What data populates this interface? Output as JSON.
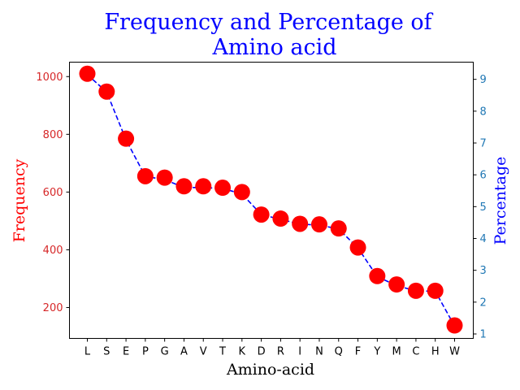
{
  "chart_data": {
    "type": "scatter",
    "title_lines": [
      "Frequency and Percentage of",
      "Amino acid"
    ],
    "xlabel": "Amino-acid",
    "ylabel_left": "Frequency",
    "ylabel_right": "Percentage",
    "categories": [
      "L",
      "S",
      "E",
      "P",
      "G",
      "A",
      "V",
      "T",
      "K",
      "D",
      "R",
      "I",
      "N",
      "Q",
      "F",
      "Y",
      "M",
      "C",
      "H",
      "W"
    ],
    "series": [
      {
        "axis": "left",
        "kind": "scatter",
        "color": "#ff0000",
        "values": [
          1010,
          948,
          785,
          655,
          650,
          620,
          620,
          615,
          600,
          522,
          508,
          490,
          488,
          474,
          408,
          309,
          280,
          258,
          258,
          138
        ]
      },
      {
        "axis": "right",
        "kind": "dashed-line",
        "color": "#0000ff",
        "values": [
          9.15,
          8.6,
          7.1,
          5.95,
          5.85,
          5.6,
          5.6,
          5.57,
          5.4,
          4.75,
          4.6,
          4.45,
          4.42,
          4.3,
          3.7,
          2.8,
          2.52,
          2.35,
          2.34,
          1.25
        ]
      }
    ],
    "ylim_left": [
      93,
      1050
    ],
    "ylim_right": [
      0.86,
      9.54
    ],
    "yticks_left": [
      200,
      400,
      600,
      800,
      1000
    ],
    "yticks_right": [
      1,
      2,
      3,
      4,
      5,
      6,
      7,
      8,
      9
    ],
    "left_axis_color": "#d62728",
    "right_axis_color": "#1f77b4",
    "grid": false,
    "legend": "none"
  }
}
